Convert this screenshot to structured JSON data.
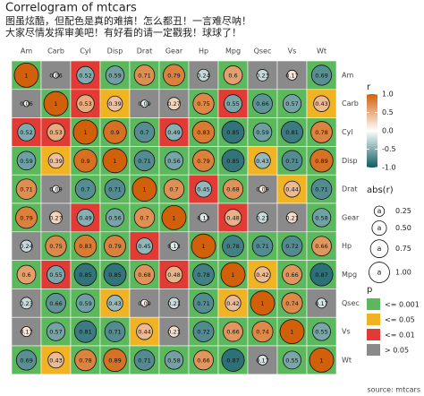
{
  "chart_data": {
    "type": "correlogram",
    "title": "Correlogram of mtcars",
    "subtitle_lines": [
      "图虽炫酷，但配色是真的难搞！怎么都丑！一言难尽呐！",
      "大家尽情发挥审美吧！有好看的请一定戳我！球球了！"
    ],
    "caption": "source: mtcars",
    "variables": [
      "Am",
      "Carb",
      "Cyl",
      "Disp",
      "Drat",
      "Gear",
      "Hp",
      "Mpg",
      "Qsec",
      "Vs",
      "Wt"
    ],
    "values": [
      [
        1,
        0.06,
        -0.52,
        -0.59,
        0.71,
        0.79,
        -0.24,
        0.6,
        -0.23,
        0.17,
        -0.69
      ],
      [
        0.06,
        1,
        0.53,
        0.39,
        -0.09,
        0.27,
        0.75,
        -0.55,
        -0.66,
        -0.57,
        0.43
      ],
      [
        -0.52,
        0.53,
        1,
        0.9,
        -0.7,
        -0.49,
        0.83,
        -0.85,
        -0.59,
        -0.81,
        0.78
      ],
      [
        -0.59,
        0.39,
        0.9,
        1,
        -0.71,
        -0.56,
        0.79,
        -0.85,
        -0.43,
        -0.71,
        0.89
      ],
      [
        0.71,
        -0.09,
        -0.7,
        -0.71,
        1,
        0.7,
        -0.45,
        0.68,
        0.09,
        0.44,
        -0.71
      ],
      [
        0.79,
        0.27,
        -0.49,
        -0.56,
        0.7,
        1,
        -0.13,
        0.48,
        -0.21,
        0.21,
        -0.58
      ],
      [
        -0.24,
        0.75,
        0.83,
        0.79,
        -0.45,
        -0.13,
        1,
        -0.78,
        -0.71,
        -0.72,
        0.66
      ],
      [
        0.6,
        -0.55,
        -0.85,
        -0.85,
        0.68,
        0.48,
        -0.78,
        1,
        0.42,
        0.66,
        -0.87
      ],
      [
        -0.23,
        -0.66,
        -0.59,
        -0.43,
        0.09,
        -0.21,
        -0.71,
        0.42,
        1,
        0.74,
        -0.17
      ],
      [
        0.17,
        -0.57,
        -0.81,
        -0.71,
        0.44,
        0.21,
        -0.72,
        0.66,
        0.74,
        1,
        -0.55
      ],
      [
        -0.69,
        0.43,
        0.78,
        0.89,
        -0.71,
        -0.58,
        0.66,
        -0.87,
        -0.17,
        -0.55,
        1
      ]
    ],
    "value_labels": [
      [
        "1",
        "0.06",
        "0.52",
        "0.59",
        "0.71",
        "0.79",
        "0.24",
        "0.6",
        "0.23",
        "0.17",
        "0.69"
      ],
      [
        "0.06",
        "1",
        "0.53",
        "0.39",
        "0.09",
        "0.27",
        "0.75",
        "0.55",
        "0.66",
        "0.57",
        "0.43"
      ],
      [
        "0.52",
        "0.53",
        "1",
        "0.9",
        "0.7",
        "0.49",
        "0.83",
        "0.85",
        "0.59",
        "0.81",
        "0.78"
      ],
      [
        "0.59",
        "0.39",
        "0.9",
        "1",
        "0.71",
        "0.56",
        "0.79",
        "0.85",
        "0.43",
        "0.71",
        "0.89"
      ],
      [
        "0.71",
        "0.09",
        "0.7",
        "0.71",
        "1",
        "0.7",
        "0.45",
        "0.68",
        "0.09",
        "0.44",
        "0.71"
      ],
      [
        "0.79",
        "0.27",
        "0.49",
        "0.56",
        "0.7",
        "1",
        "0.13",
        "0.48",
        "0.21",
        "0.21",
        "0.58"
      ],
      [
        "0.24",
        "0.75",
        "0.83",
        "0.79",
        "0.45",
        "0.13",
        "1",
        "0.78",
        "0.71",
        "0.72",
        "0.66"
      ],
      [
        "0.6",
        "0.55",
        "0.85",
        "0.85",
        "0.68",
        "0.48",
        "0.78",
        "1",
        "0.42",
        "0.66",
        "0.87"
      ],
      [
        "0.23",
        "0.66",
        "0.59",
        "0.43",
        "0.09",
        "0.21",
        "0.71",
        "0.42",
        "1",
        "0.74",
        "0.17"
      ],
      [
        "0.17",
        "0.57",
        "0.81",
        "0.71",
        "0.44",
        "0.21",
        "0.72",
        "0.66",
        "0.74",
        "1",
        "0.55"
      ],
      [
        "0.69",
        "0.43",
        "0.78",
        "0.89",
        "0.71",
        "0.58",
        "0.66",
        "0.87",
        "0.17",
        "0.55",
        "1"
      ]
    ],
    "p_levels": [
      [
        "<= 0.001",
        "> 0.05",
        "<= 0.01",
        "<= 0.001",
        "<= 0.001",
        "<= 0.001",
        "> 0.05",
        "<= 0.001",
        "> 0.05",
        "> 0.05",
        "<= 0.001"
      ],
      [
        "> 0.05",
        "<= 0.001",
        "<= 0.01",
        "<= 0.05",
        "> 0.05",
        "> 0.05",
        "<= 0.001",
        "<= 0.01",
        "<= 0.001",
        "<= 0.001",
        "<= 0.05"
      ],
      [
        "<= 0.01",
        "<= 0.01",
        "<= 0.001",
        "<= 0.001",
        "<= 0.001",
        "<= 0.01",
        "<= 0.001",
        "<= 0.001",
        "<= 0.001",
        "<= 0.001",
        "<= 0.001"
      ],
      [
        "<= 0.001",
        "<= 0.05",
        "<= 0.001",
        "<= 0.001",
        "<= 0.001",
        "<= 0.001",
        "<= 0.001",
        "<= 0.001",
        "<= 0.05",
        "<= 0.001",
        "<= 0.001"
      ],
      [
        "<= 0.001",
        "> 0.05",
        "<= 0.001",
        "<= 0.001",
        "<= 0.001",
        "<= 0.001",
        "<= 0.01",
        "<= 0.001",
        "> 0.05",
        "<= 0.05",
        "<= 0.001"
      ],
      [
        "<= 0.001",
        "> 0.05",
        "<= 0.01",
        "<= 0.001",
        "<= 0.001",
        "<= 0.001",
        "> 0.05",
        "<= 0.01",
        "> 0.05",
        "> 0.05",
        "<= 0.001"
      ],
      [
        "> 0.05",
        "<= 0.001",
        "<= 0.001",
        "<= 0.001",
        "<= 0.01",
        "> 0.05",
        "<= 0.001",
        "<= 0.001",
        "<= 0.001",
        "<= 0.001",
        "<= 0.001"
      ],
      [
        "<= 0.001",
        "<= 0.01",
        "<= 0.001",
        "<= 0.001",
        "<= 0.001",
        "<= 0.01",
        "<= 0.001",
        "<= 0.001",
        "<= 0.05",
        "<= 0.001",
        "<= 0.001"
      ],
      [
        "> 0.05",
        "<= 0.001",
        "<= 0.001",
        "<= 0.05",
        "> 0.05",
        "> 0.05",
        "<= 0.001",
        "<= 0.05",
        "<= 0.001",
        "<= 0.001",
        "> 0.05"
      ],
      [
        "> 0.05",
        "<= 0.001",
        "<= 0.001",
        "<= 0.001",
        "<= 0.05",
        "> 0.05",
        "<= 0.001",
        "<= 0.001",
        "<= 0.001",
        "<= 0.001",
        "<= 0.001"
      ],
      [
        "<= 0.001",
        "<= 0.05",
        "<= 0.001",
        "<= 0.001",
        "<= 0.001",
        "<= 0.001",
        "<= 0.001",
        "<= 0.001",
        "> 0.05",
        "<= 0.001",
        "<= 0.001"
      ]
    ],
    "color_scale": {
      "title": "r",
      "low_color": "#0d5c63",
      "mid_color": "#ffffff",
      "high_color": "#d2600a",
      "lim": [
        -1,
        1
      ],
      "ticks": [
        {
          "value": -1,
          "label": "-1.0"
        },
        {
          "value": -0.5,
          "label": "-0.5"
        },
        {
          "value": 0,
          "label": "0.0"
        },
        {
          "value": 0.5,
          "label": "0.5"
        },
        {
          "value": 1,
          "label": "1.0"
        }
      ]
    },
    "size_legend": {
      "title": "abs(r)",
      "symbol": "a",
      "breaks": [
        0.25,
        {
          "value": 0.5,
          "label": "0.50"
        },
        0.75,
        {
          "value": 1,
          "label": "1.00"
        }
      ]
    },
    "p_legend": {
      "title": "p",
      "items": [
        {
          "label": "<= 0.001",
          "color": "#5cb85c"
        },
        {
          "label": "<= 0.05",
          "color": "#f0b323"
        },
        {
          "label": "<= 0.01",
          "color": "#e23b35"
        },
        {
          "label": "> 0.05",
          "color": "#8a8a8a"
        }
      ]
    }
  }
}
